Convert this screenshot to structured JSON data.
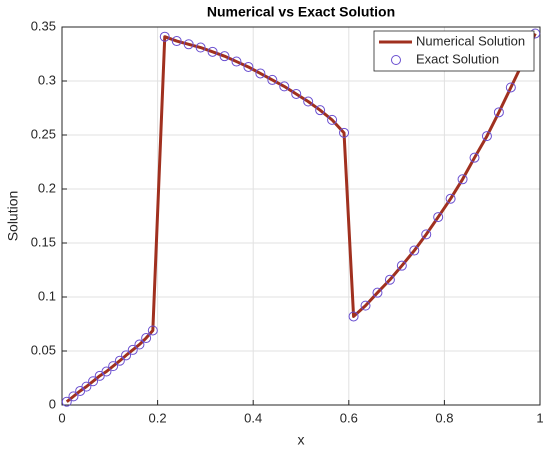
{
  "chart_data": {
    "type": "line",
    "title": "Numerical vs Exact Solution",
    "xlabel": "x",
    "ylabel": "Solution",
    "x": [
      0.01,
      0.024,
      0.038,
      0.051,
      0.065,
      0.079,
      0.093,
      0.107,
      0.121,
      0.134,
      0.148,
      0.162,
      0.176,
      0.19,
      0.215,
      0.24,
      0.265,
      0.29,
      0.315,
      0.34,
      0.365,
      0.39,
      0.415,
      0.44,
      0.465,
      0.49,
      0.515,
      0.54,
      0.565,
      0.59,
      0.61,
      0.635,
      0.66,
      0.686,
      0.711,
      0.737,
      0.762,
      0.787,
      0.813,
      0.838,
      0.863,
      0.889,
      0.914,
      0.939,
      0.965,
      0.99
    ],
    "series": [
      {
        "name": "Numerical Solution",
        "color": "#a0301f",
        "marker": "none",
        "values": [
          0.003,
          0.008,
          0.013,
          0.017,
          0.022,
          0.027,
          0.031,
          0.036,
          0.041,
          0.046,
          0.051,
          0.056,
          0.062,
          0.069,
          0.341,
          0.337,
          0.334,
          0.331,
          0.327,
          0.323,
          0.318,
          0.313,
          0.307,
          0.301,
          0.295,
          0.288,
          0.281,
          0.273,
          0.264,
          0.252,
          0.082,
          0.092,
          0.104,
          0.116,
          0.129,
          0.143,
          0.158,
          0.174,
          0.191,
          0.209,
          0.229,
          0.249,
          0.271,
          0.294,
          0.318,
          0.344
        ]
      },
      {
        "name": "Exact Solution",
        "color": "#6a4fd0",
        "marker": "circle",
        "values": [
          0.003,
          0.008,
          0.013,
          0.017,
          0.022,
          0.027,
          0.031,
          0.036,
          0.041,
          0.046,
          0.051,
          0.056,
          0.062,
          0.069,
          0.341,
          0.337,
          0.334,
          0.331,
          0.327,
          0.323,
          0.318,
          0.313,
          0.307,
          0.301,
          0.295,
          0.288,
          0.281,
          0.273,
          0.264,
          0.252,
          0.082,
          0.092,
          0.104,
          0.116,
          0.129,
          0.143,
          0.158,
          0.174,
          0.191,
          0.209,
          0.229,
          0.249,
          0.271,
          0.294,
          0.318,
          0.344
        ]
      }
    ],
    "xlim": [
      0,
      1
    ],
    "xticks": [
      0,
      0.2,
      0.4,
      0.6,
      0.8,
      1
    ],
    "ylim": [
      0,
      0.35
    ],
    "yticks": [
      0,
      0.05,
      0.1,
      0.15,
      0.2,
      0.25,
      0.3,
      0.35
    ],
    "grid": true,
    "legend": "northeast"
  }
}
